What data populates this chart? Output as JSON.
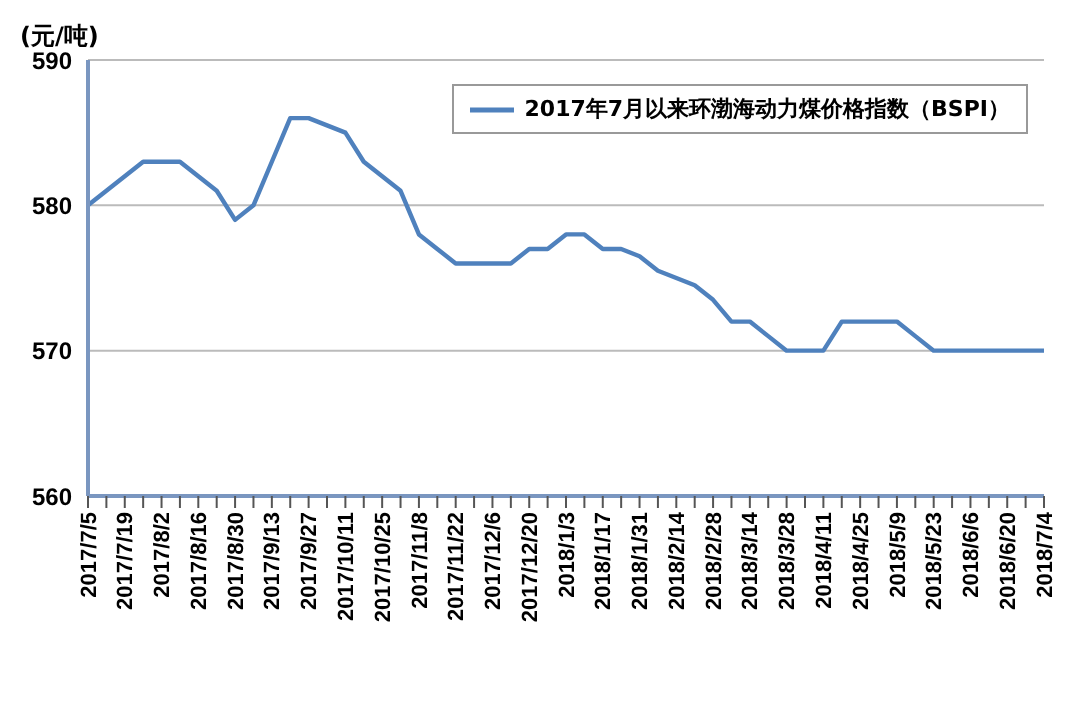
{
  "chart_data": {
    "type": "line",
    "ylabel": "(元/吨)",
    "categories": [
      "2017/7/5",
      null,
      "2017/7/19",
      null,
      "2017/8/2",
      null,
      "2017/8/16",
      null,
      "2017/8/30",
      null,
      "2017/9/13",
      null,
      "2017/9/27",
      null,
      "2017/10/11",
      null,
      "2017/10/25",
      null,
      "2017/11/8",
      null,
      "2017/11/22",
      null,
      "2017/12/6",
      null,
      "2017/12/20",
      null,
      "2018/1/3",
      null,
      "2018/1/17",
      null,
      "2018/1/31",
      null,
      "2018/2/14",
      null,
      "2018/2/28",
      null,
      "2018/3/14",
      null,
      "2018/3/28",
      null,
      "2018/4/11",
      null,
      "2018/4/25",
      null,
      "2018/5/9",
      null,
      "2018/5/23",
      null,
      "2018/6/6",
      null,
      "2018/6/20",
      null,
      "2018/7/4"
    ],
    "series": [
      {
        "name": "2017年7月以来环渤海动力煤价格指数（BSPI）",
        "color": "#4f81bd",
        "values": [
          580,
          581,
          582,
          583,
          583,
          583,
          582,
          581,
          579,
          580,
          583,
          586,
          586,
          585.5,
          585,
          583,
          582,
          581,
          578,
          577,
          576,
          576,
          576,
          576,
          577,
          577,
          578,
          578,
          577,
          577,
          576.5,
          575.5,
          575,
          574.5,
          573.5,
          572,
          572,
          571,
          570,
          570,
          570,
          572,
          572,
          572,
          572,
          571,
          570,
          570,
          570,
          570,
          570,
          570,
          570
        ]
      }
    ],
    "ylim": [
      560,
      590
    ],
    "yticks": [
      560,
      570,
      580,
      590
    ],
    "grid": "y",
    "legend": "top right",
    "marker": "none",
    "line_style": "solid"
  }
}
